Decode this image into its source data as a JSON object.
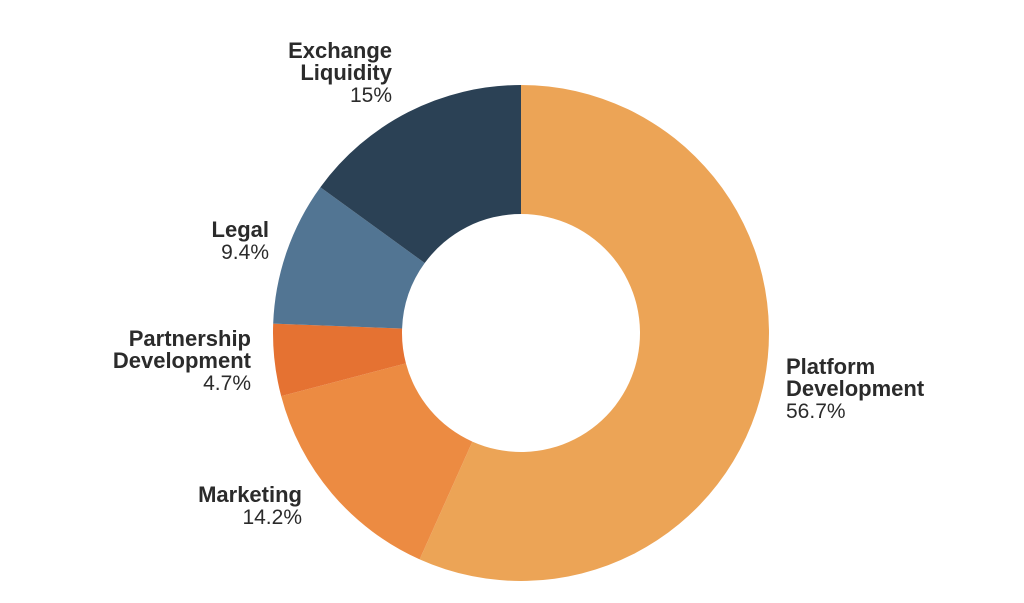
{
  "chart_data": {
    "type": "pie",
    "donut": true,
    "title": "",
    "legend": "none",
    "slices": [
      {
        "name_lines": [
          "Platform",
          "Development"
        ],
        "value": 56.7,
        "label": "56.7%",
        "color": "#eca456",
        "label_side": "right"
      },
      {
        "name_lines": [
          "Marketing"
        ],
        "value": 14.2,
        "label": "14.2%",
        "color": "#ec8b42",
        "label_side": "left"
      },
      {
        "name_lines": [
          "Partnership",
          "Development"
        ],
        "value": 4.7,
        "label": "4.7%",
        "color": "#e57232",
        "label_side": "left"
      },
      {
        "name_lines": [
          "Legal"
        ],
        "value": 9.4,
        "label": "9.4%",
        "color": "#527593",
        "label_side": "left"
      },
      {
        "name_lines": [
          "Exchange",
          "Liquidity"
        ],
        "value": 15,
        "label": "15%",
        "color": "#2b4155",
        "label_side": "left"
      }
    ]
  }
}
